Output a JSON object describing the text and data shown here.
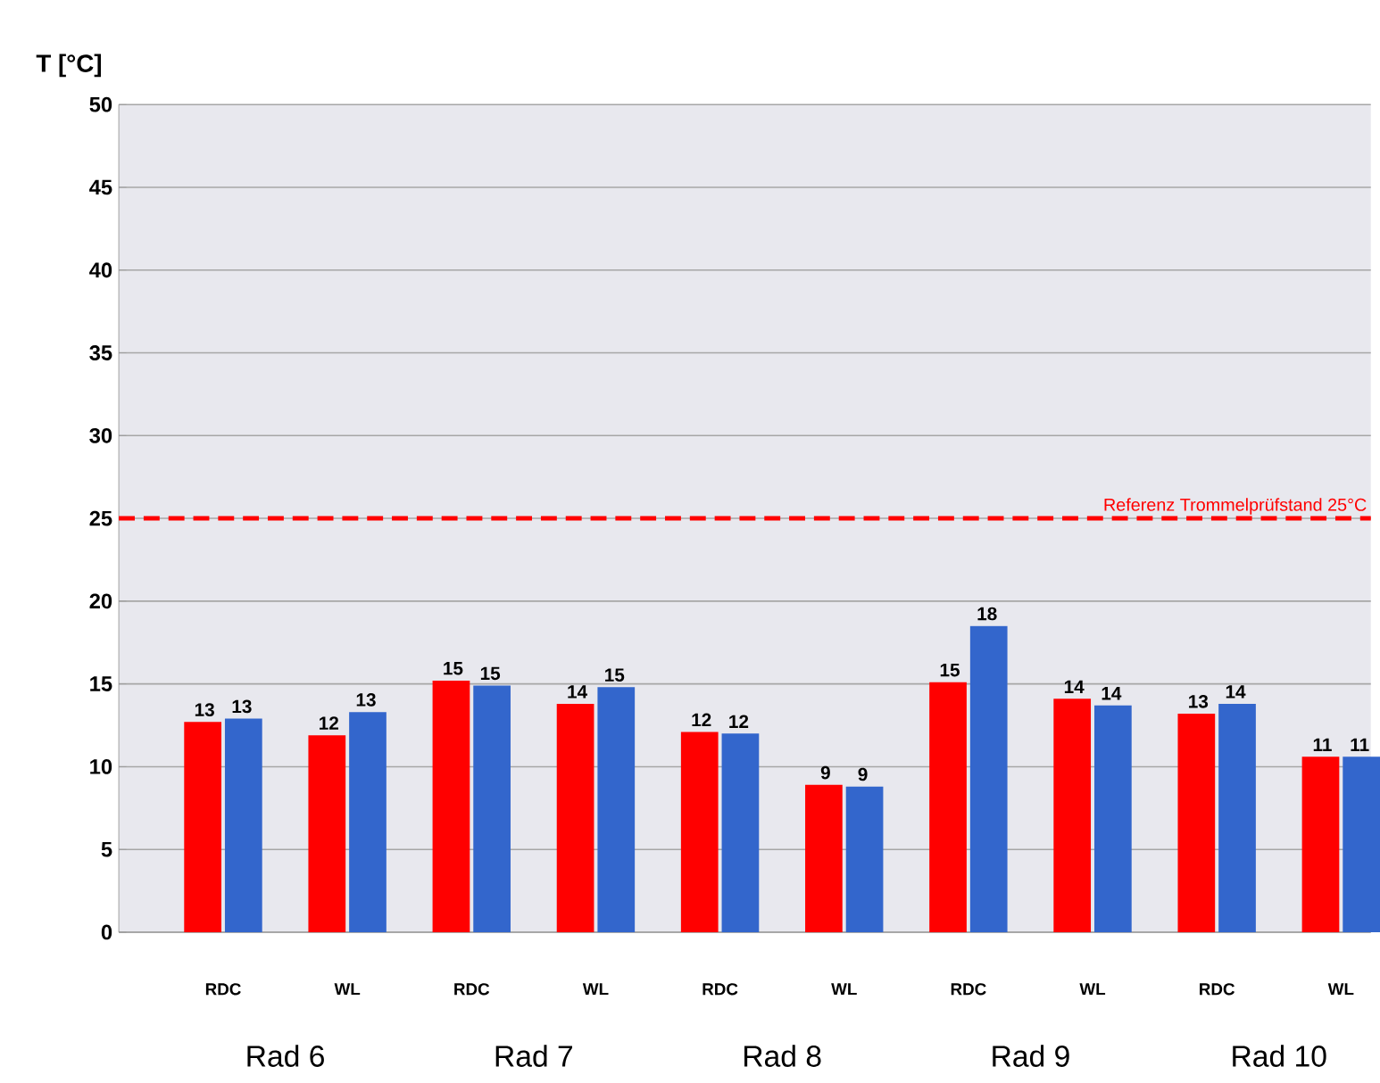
{
  "chart_data": {
    "type": "bar",
    "ylabel": "T [°C]",
    "categories": [
      "RDC",
      "WL",
      "RDC",
      "WL",
      "RDC",
      "WL",
      "RDC",
      "WL",
      "RDC",
      "WL"
    ],
    "series": [
      {
        "color": "#ff0000",
        "values": [
          12.7,
          11.9,
          15.2,
          13.8,
          12.1,
          8.9,
          15.1,
          14.1,
          13.2,
          10.6
        ],
        "value_labels": [
          "13",
          "12",
          "15",
          "14",
          "12",
          "9",
          "15",
          "14",
          "13",
          "11"
        ]
      },
      {
        "color": "#3366cc",
        "values": [
          12.9,
          13.3,
          14.9,
          14.8,
          12.0,
          8.8,
          18.5,
          13.7,
          13.8,
          10.6
        ],
        "value_labels": [
          "13",
          "13",
          "15",
          "15",
          "12",
          "9",
          "18",
          "14",
          "14",
          "11"
        ]
      }
    ],
    "ylim": [
      0,
      50
    ],
    "yticks": [
      0,
      5,
      10,
      15,
      20,
      25,
      30,
      35,
      40,
      45,
      50
    ],
    "grid": "y",
    "ref_lines": [
      {
        "axis": "y",
        "value": 25,
        "label": "Referenz Trommelprüfstand 25°C",
        "color": "#ff0000",
        "line_style": "dashed"
      }
    ],
    "annotations": [
      "Rad 6",
      "Rad 7",
      "Rad 8",
      "Rad 9",
      "Rad 10"
    ]
  }
}
